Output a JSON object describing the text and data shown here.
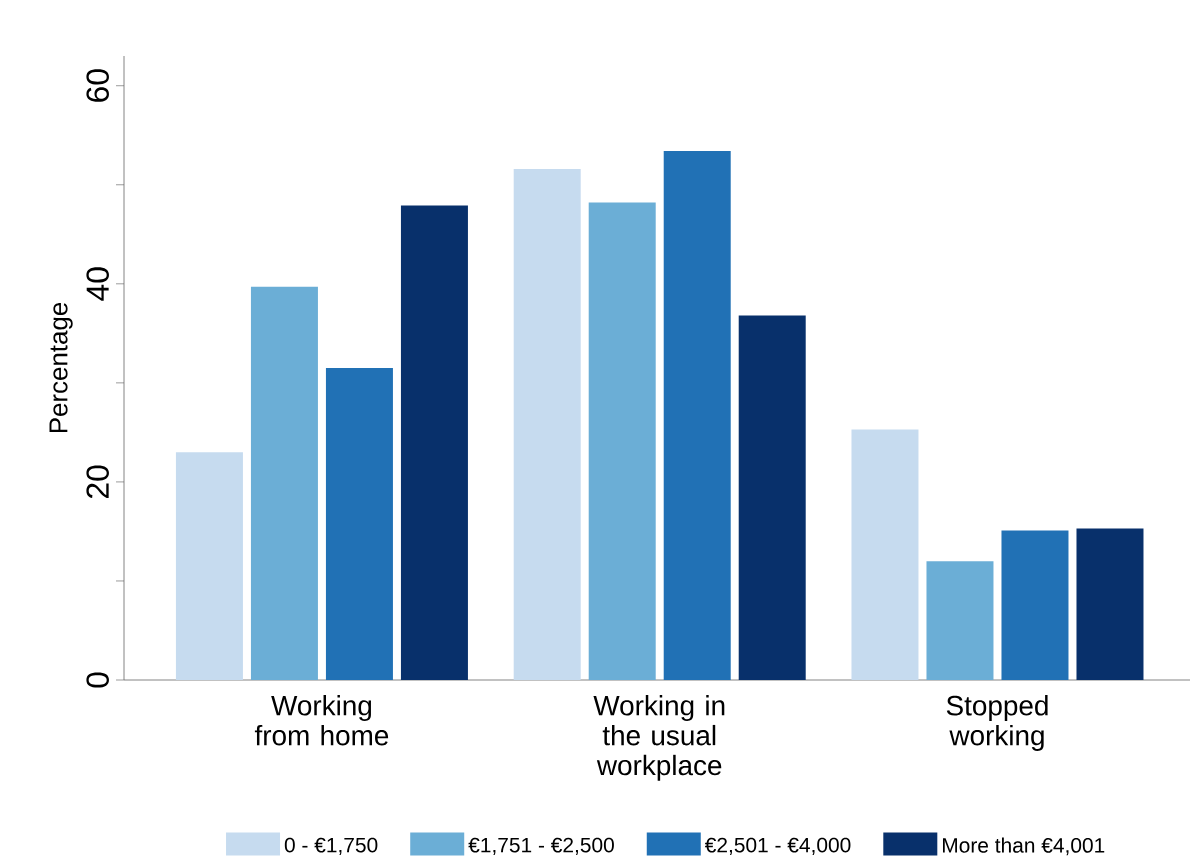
{
  "chart_data": {
    "type": "bar",
    "categories": [
      "Working from home",
      "Working in the usual workplace",
      "Stopped working"
    ],
    "ylabel": "Percentage",
    "series": [
      {
        "name": "0 - €1,750",
        "color": "#c6dbef",
        "values": [
          23.0,
          51.6,
          25.3
        ]
      },
      {
        "name": "€1,751 - €2,500",
        "color": "#6baed6",
        "values": [
          39.7,
          48.2,
          12.0
        ]
      },
      {
        "name": "€2,501 - €4,000",
        "color": "#2171b5",
        "values": [
          31.5,
          53.4,
          15.1
        ]
      },
      {
        "name": "More than €4,001",
        "color": "#08306b",
        "values": [
          47.9,
          36.8,
          15.3
        ]
      }
    ],
    "ylim": [
      0,
      63
    ],
    "yticks": [
      0,
      {
        "value": 10,
        "label": null
      },
      20,
      {
        "value": 30,
        "label": null
      },
      40,
      {
        "value": 50,
        "label": null
      },
      60
    ],
    "grid": false,
    "legend": "bottom"
  }
}
